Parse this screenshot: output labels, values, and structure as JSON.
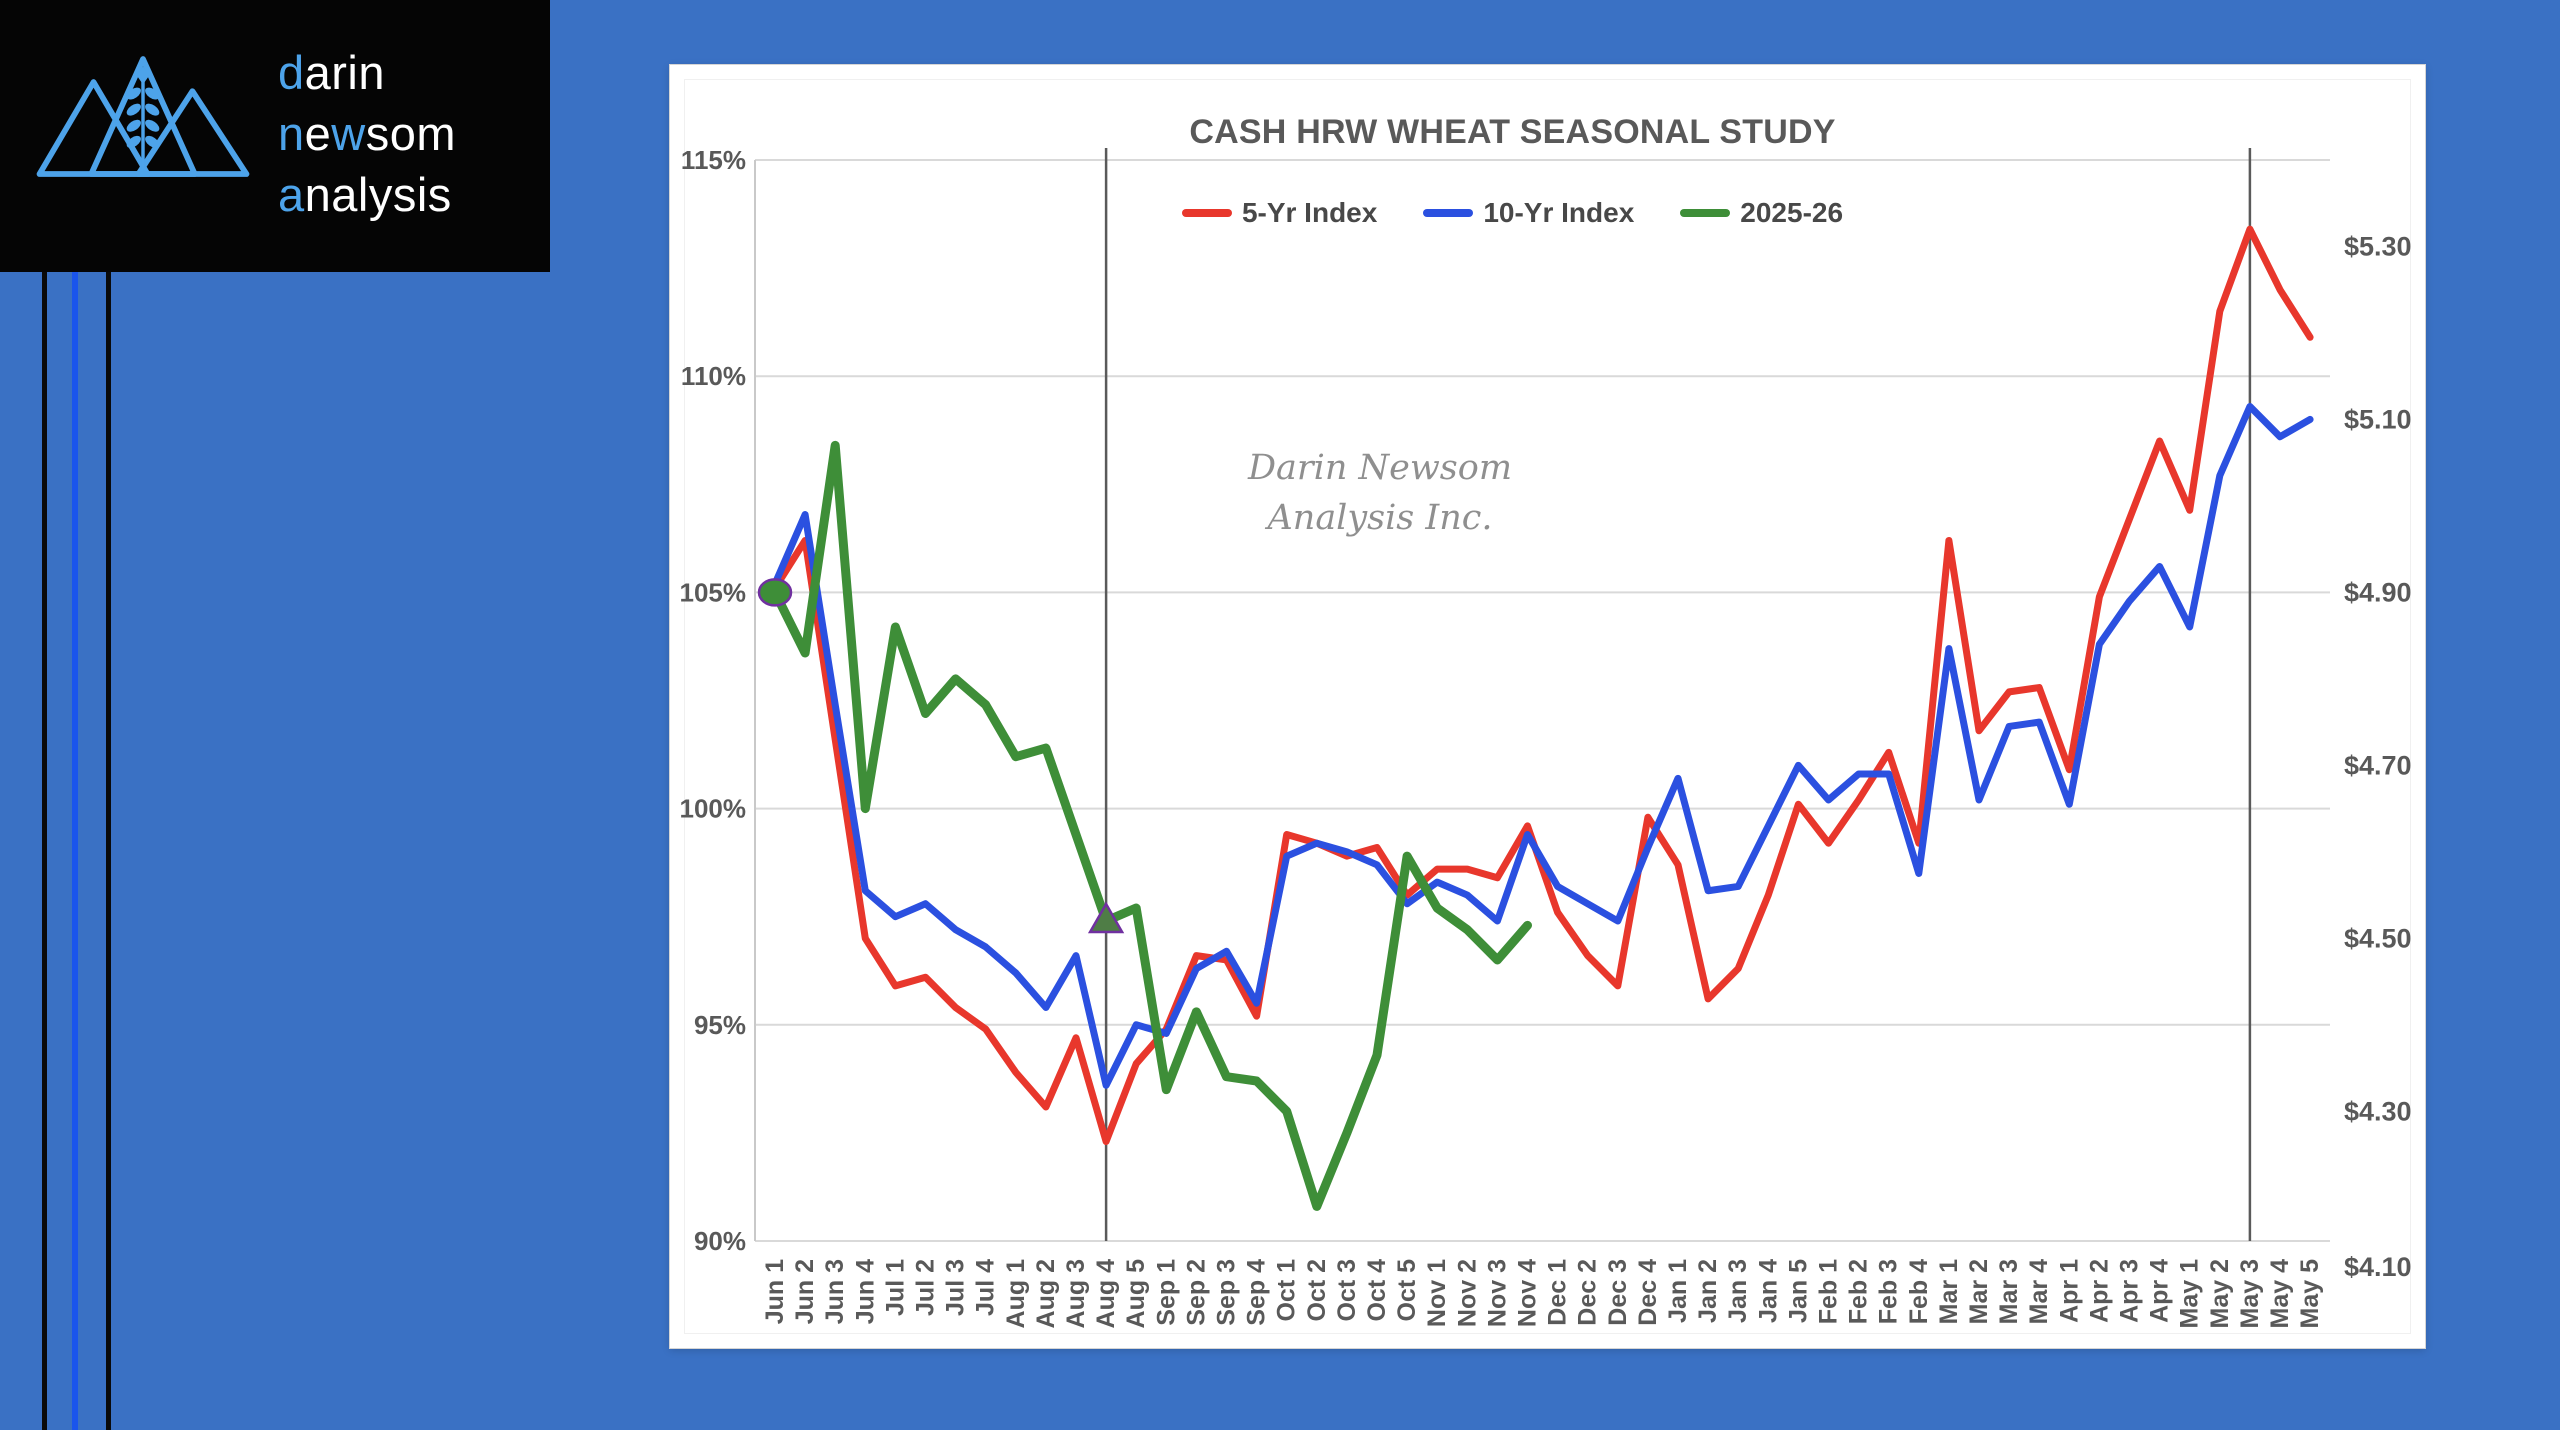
{
  "page": {
    "background_color": "#3a71c4"
  },
  "logo": {
    "accent_color": "#4da3ea",
    "lines": [
      [
        {
          "t": "d",
          "blue": true
        },
        {
          "t": "arin",
          "blue": false
        }
      ],
      [
        {
          "t": "n",
          "blue": true
        },
        {
          "t": "e",
          "blue": false
        },
        {
          "t": "w",
          "blue": true
        },
        {
          "t": "som",
          "blue": false
        }
      ],
      [
        {
          "t": "a",
          "blue": true
        },
        {
          "t": "nalysis",
          "blue": false
        }
      ]
    ]
  },
  "chart": {
    "title": "CASH HRW WHEAT SEASONAL STUDY",
    "watermark_line1": "Darin Newsom",
    "watermark_line2": "Analysis Inc.",
    "text_color": "#595959",
    "gridline_color": "#d9d9d9",
    "axisline_color": "#c9c9c9",
    "refline_color": "#5a5a5a"
  },
  "chart_data": {
    "type": "line",
    "title": "CASH HRW WHEAT SEASONAL STUDY",
    "xlabel": "",
    "ylabel": "",
    "grid": true,
    "legend_position": "top",
    "ylim": [
      90,
      115
    ],
    "y_axis_left_ticks": [
      "115%",
      "110%",
      "105%",
      "100%",
      "95%",
      "90%"
    ],
    "y_axis_left_values": [
      115,
      110,
      105,
      100,
      95,
      90
    ],
    "y_axis_right_ticks": [
      {
        "label": "$5.30",
        "pct": 113.0
      },
      {
        "label": "$5.10",
        "pct": 109.0
      },
      {
        "label": "$4.90",
        "pct": 105.0
      },
      {
        "label": "$4.70",
        "pct": 101.0
      },
      {
        "label": "$4.50",
        "pct": 97.0
      },
      {
        "label": "$4.30",
        "pct": 93.0
      },
      {
        "label": "$4.10",
        "pct": 89.4
      }
    ],
    "categories": [
      "Jun 1",
      "Jun 2",
      "Jun 3",
      "Jun 4",
      "Jul 1",
      "Jul 2",
      "Jul 3",
      "Jul 4",
      "Aug 1",
      "Aug 2",
      "Aug 3",
      "Aug 4",
      "Aug 5",
      "Sep 1",
      "Sep 2",
      "Sep 3",
      "Sep 4",
      "Oct 1",
      "Oct 2",
      "Oct 3",
      "Oct 4",
      "Oct 5",
      "Nov 1",
      "Nov 2",
      "Nov 3",
      "Nov 4",
      "Dec 1",
      "Dec 2",
      "Dec 3",
      "Dec 4",
      "Jan 1",
      "Jan 2",
      "Jan 3",
      "Jan 4",
      "Jan 5",
      "Feb 1",
      "Feb 2",
      "Feb 3",
      "Feb 4",
      "Mar 1",
      "Mar 2",
      "Mar 3",
      "Mar 4",
      "Apr 1",
      "Apr 2",
      "Apr 3",
      "Apr 4",
      "May 1",
      "May 2",
      "May 3",
      "May 4",
      "May 5"
    ],
    "series": [
      {
        "name": "5-Yr Index",
        "color": "#e8372c",
        "width": 7,
        "values": [
          105.1,
          106.2,
          101.6,
          97.0,
          95.9,
          96.1,
          95.4,
          94.9,
          93.9,
          93.1,
          94.7,
          92.3,
          94.1,
          94.9,
          96.6,
          96.5,
          95.2,
          99.4,
          99.2,
          98.9,
          99.1,
          98.0,
          98.6,
          98.6,
          98.4,
          99.6,
          97.6,
          96.6,
          95.9,
          99.8,
          98.7,
          95.6,
          96.3,
          98.0,
          100.1,
          99.2,
          100.2,
          101.3,
          99.2,
          106.2,
          101.8,
          102.7,
          102.8,
          100.9,
          104.9,
          106.7,
          108.5,
          106.9,
          111.5,
          113.4,
          112.0,
          110.9
        ]
      },
      {
        "name": "10-Yr Index",
        "color": "#2b50e0",
        "width": 7,
        "values": [
          105.2,
          106.8,
          102.4,
          98.1,
          97.5,
          97.8,
          97.2,
          96.8,
          96.2,
          95.4,
          96.6,
          93.6,
          95.0,
          94.8,
          96.3,
          96.7,
          95.5,
          98.9,
          99.2,
          99.0,
          98.7,
          97.8,
          98.3,
          98.0,
          97.4,
          99.4,
          98.2,
          97.8,
          97.4,
          99.1,
          100.7,
          98.1,
          98.2,
          99.6,
          101.0,
          100.2,
          100.8,
          100.8,
          98.5,
          103.7,
          100.2,
          101.9,
          102.0,
          100.1,
          103.8,
          104.8,
          105.6,
          104.2,
          107.7,
          109.3,
          108.6,
          109.0
        ]
      },
      {
        "name": "2025-26",
        "color": "#3e8e38",
        "width": 9,
        "values": [
          105.0,
          103.6,
          108.4,
          100.0,
          104.2,
          102.2,
          103.0,
          102.4,
          101.2,
          101.4,
          99.4,
          97.4,
          97.7,
          93.5,
          95.3,
          93.8,
          93.7,
          93.0,
          90.8,
          92.5,
          94.3,
          98.9,
          97.7,
          97.2,
          96.5,
          97.3
        ]
      }
    ],
    "markers": [
      {
        "series": "2025-26",
        "category": "Jun 1",
        "shape": "circle",
        "fill": "#3e8e38",
        "stroke": "#7030a0"
      },
      {
        "series": "2025-26",
        "category": "Aug 4",
        "shape": "triangle",
        "fill": "#4f7d46",
        "stroke": "#7030a0"
      }
    ],
    "reference_vlines": [
      {
        "category": "Aug 4"
      },
      {
        "category": "May 3"
      }
    ]
  }
}
